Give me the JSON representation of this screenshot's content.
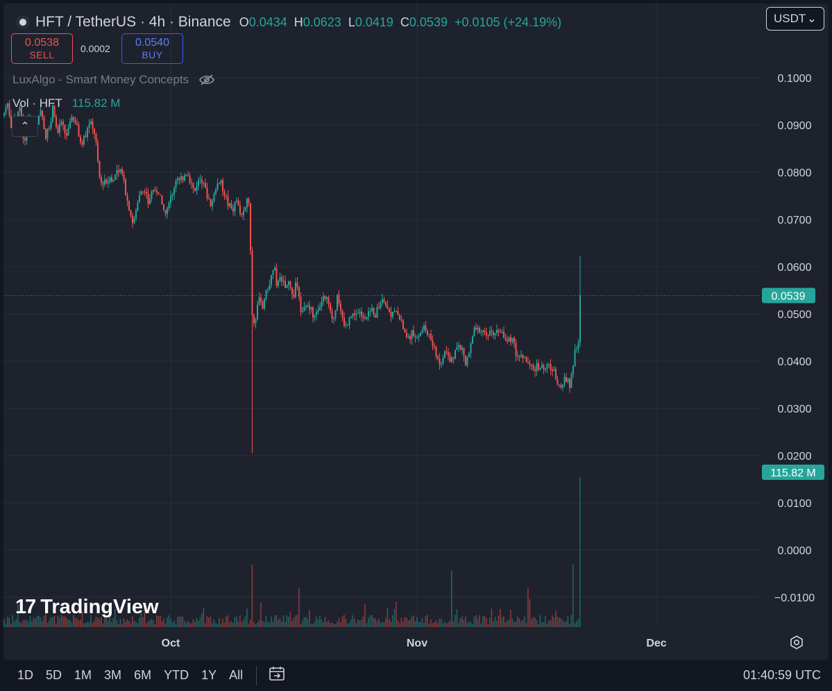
{
  "header": {
    "title": "HFT / TetherUS · 4h · Binance",
    "ohlc": {
      "o_label": "O",
      "o": "0.0434",
      "h_label": "H",
      "h": "0.0623",
      "l_label": "L",
      "l": "0.0419",
      "c_label": "C",
      "c": "0.0539",
      "change": "+0.0105 (+24.19%)"
    },
    "currency": "USDT"
  },
  "trade": {
    "sell_price": "0.0538",
    "sell_label": "SELL",
    "spread": "0.0002",
    "buy_price": "0.0540",
    "buy_label": "BUY"
  },
  "indicator": {
    "name": "LuxAlgo - Smart Money Concepts",
    "icon": "eye-off-icon"
  },
  "volume": {
    "name": "Vol · HFT",
    "value": "115.82 M"
  },
  "branding": {
    "name": "TradingView"
  },
  "price_tags": {
    "last": "0.0539",
    "volume": "115.82 M"
  },
  "bottom": {
    "ranges": [
      "1D",
      "5D",
      "1M",
      "3M",
      "6M",
      "YTD",
      "1Y",
      "All"
    ],
    "clock": "01:40:59 UTC"
  },
  "colors": {
    "up": "#26a69a",
    "down": "#ef5350",
    "bg": "#1e222d",
    "grid": "#2a2e39"
  },
  "chart_data": {
    "type": "candlestick",
    "y_ticks": [
      "0.1000",
      "0.0900",
      "0.0800",
      "0.0700",
      "0.0600",
      "0.0500",
      "0.0400",
      "0.0300",
      "0.0200",
      "0.0100",
      "0.0000",
      "−0.0100"
    ],
    "x_ticks": [
      "Oct",
      "Nov",
      "Dec"
    ],
    "ylim": [
      -0.0125,
      0.1115
    ],
    "last_price": 0.0539,
    "price_path": [
      [
        0,
        0.092
      ],
      [
        6,
        0.095
      ],
      [
        12,
        0.089
      ],
      [
        18,
        0.092
      ],
      [
        24,
        0.094
      ],
      [
        30,
        0.086
      ],
      [
        36,
        0.092
      ],
      [
        42,
        0.089
      ],
      [
        48,
        0.09
      ],
      [
        54,
        0.093
      ],
      [
        60,
        0.087
      ],
      [
        66,
        0.09
      ],
      [
        72,
        0.094
      ],
      [
        78,
        0.088
      ],
      [
        84,
        0.091
      ],
      [
        90,
        0.087
      ],
      [
        96,
        0.091
      ],
      [
        102,
        0.092
      ],
      [
        108,
        0.088
      ],
      [
        114,
        0.086
      ],
      [
        120,
        0.089
      ],
      [
        126,
        0.091
      ],
      [
        132,
        0.088
      ],
      [
        136,
        0.083
      ],
      [
        140,
        0.077
      ],
      [
        146,
        0.078
      ],
      [
        152,
        0.079
      ],
      [
        158,
        0.078
      ],
      [
        164,
        0.081
      ],
      [
        170,
        0.08
      ],
      [
        176,
        0.076
      ],
      [
        182,
        0.072
      ],
      [
        187,
        0.069
      ],
      [
        192,
        0.072
      ],
      [
        198,
        0.076
      ],
      [
        204,
        0.076
      ],
      [
        210,
        0.073
      ],
      [
        216,
        0.077
      ],
      [
        222,
        0.076
      ],
      [
        228,
        0.074
      ],
      [
        234,
        0.071
      ],
      [
        240,
        0.074
      ],
      [
        246,
        0.077
      ],
      [
        252,
        0.078
      ],
      [
        258,
        0.079
      ],
      [
        264,
        0.08
      ],
      [
        270,
        0.078
      ],
      [
        276,
        0.076
      ],
      [
        282,
        0.078
      ],
      [
        288,
        0.077
      ],
      [
        294,
        0.075
      ],
      [
        300,
        0.073
      ],
      [
        306,
        0.077
      ],
      [
        312,
        0.078
      ],
      [
        318,
        0.076
      ],
      [
        324,
        0.073
      ],
      [
        330,
        0.072
      ],
      [
        336,
        0.074
      ],
      [
        342,
        0.07
      ],
      [
        348,
        0.073
      ],
      [
        352,
        0.076
      ],
      [
        355,
        0.07
      ],
      [
        358,
        0.05
      ],
      [
        362,
        0.048
      ],
      [
        366,
        0.052
      ],
      [
        370,
        0.053
      ],
      [
        374,
        0.05
      ],
      [
        378,
        0.055
      ],
      [
        382,
        0.055
      ],
      [
        386,
        0.058
      ],
      [
        390,
        0.061
      ],
      [
        394,
        0.056
      ],
      [
        398,
        0.057
      ],
      [
        402,
        0.058
      ],
      [
        406,
        0.055
      ],
      [
        410,
        0.057
      ],
      [
        414,
        0.056
      ],
      [
        418,
        0.054
      ],
      [
        422,
        0.057
      ],
      [
        426,
        0.053
      ],
      [
        430,
        0.05
      ],
      [
        434,
        0.051
      ],
      [
        440,
        0.052
      ],
      [
        446,
        0.05
      ],
      [
        452,
        0.051
      ],
      [
        458,
        0.053
      ],
      [
        464,
        0.054
      ],
      [
        470,
        0.051
      ],
      [
        476,
        0.049
      ],
      [
        482,
        0.054
      ],
      [
        488,
        0.049
      ],
      [
        494,
        0.047
      ],
      [
        500,
        0.049
      ],
      [
        506,
        0.05
      ],
      [
        512,
        0.05
      ],
      [
        518,
        0.05
      ],
      [
        524,
        0.049
      ],
      [
        530,
        0.051
      ],
      [
        536,
        0.05
      ],
      [
        542,
        0.052
      ],
      [
        546,
        0.054
      ],
      [
        552,
        0.051
      ],
      [
        558,
        0.05
      ],
      [
        564,
        0.05
      ],
      [
        570,
        0.049
      ],
      [
        576,
        0.047
      ],
      [
        582,
        0.044
      ],
      [
        588,
        0.046
      ],
      [
        594,
        0.045
      ],
      [
        600,
        0.046
      ],
      [
        606,
        0.047
      ],
      [
        612,
        0.046
      ],
      [
        618,
        0.044
      ],
      [
        624,
        0.041
      ],
      [
        630,
        0.039
      ],
      [
        636,
        0.042
      ],
      [
        642,
        0.04
      ],
      [
        648,
        0.041
      ],
      [
        654,
        0.043
      ],
      [
        660,
        0.043
      ],
      [
        666,
        0.04
      ],
      [
        672,
        0.042
      ],
      [
        678,
        0.048
      ],
      [
        684,
        0.047
      ],
      [
        690,
        0.046
      ],
      [
        696,
        0.045
      ],
      [
        702,
        0.047
      ],
      [
        708,
        0.046
      ],
      [
        714,
        0.047
      ],
      [
        720,
        0.046
      ],
      [
        726,
        0.044
      ],
      [
        732,
        0.045
      ],
      [
        738,
        0.042
      ],
      [
        744,
        0.041
      ],
      [
        750,
        0.04
      ],
      [
        756,
        0.04
      ],
      [
        762,
        0.038
      ],
      [
        768,
        0.039
      ],
      [
        774,
        0.039
      ],
      [
        780,
        0.038
      ],
      [
        786,
        0.039
      ],
      [
        792,
        0.038
      ],
      [
        798,
        0.036
      ],
      [
        804,
        0.035
      ],
      [
        810,
        0.036
      ],
      [
        816,
        0.035
      ],
      [
        820,
        0.038
      ],
      [
        824,
        0.044
      ],
      [
        828,
        0.042
      ],
      [
        831,
        0.0539
      ]
    ],
    "spikes": [
      [
        358,
        0.0205
      ],
      [
        831,
        0.0623
      ]
    ],
    "volume_spikes": [
      [
        358,
        0.3
      ],
      [
        426,
        0.19
      ],
      [
        646,
        0.27
      ],
      [
        756,
        0.19
      ],
      [
        822,
        0.3
      ],
      [
        831,
        0.72
      ]
    ]
  }
}
